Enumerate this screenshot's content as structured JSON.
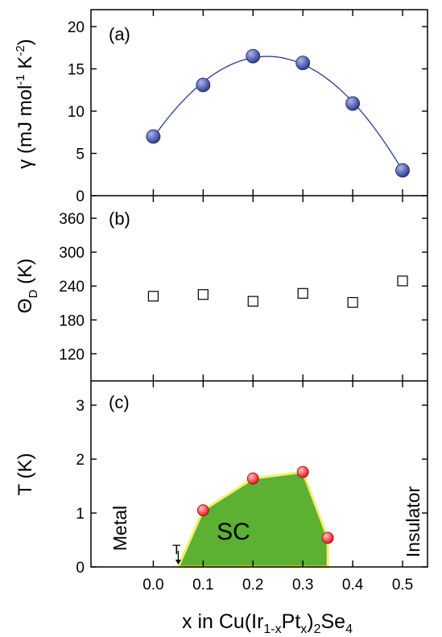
{
  "chart_data": [
    {
      "panel_label": "(a)",
      "type": "scatter",
      "ylabel": {
        "main": "γ (mJ mol",
        "sup1": "-1",
        "mid": " K",
        "sup2": "-2",
        "close": ")"
      },
      "ylim": [
        0,
        22
      ],
      "yticks": [
        0,
        5,
        10,
        15,
        20
      ],
      "x": [
        0.0,
        0.1,
        0.2,
        0.3,
        0.4,
        0.5
      ],
      "y": [
        7.0,
        13.1,
        16.5,
        15.7,
        10.9,
        3.0
      ],
      "marker": "filled-sphere",
      "fit_curve": "quadratic",
      "colors": {
        "marker": "#2b3a8f",
        "marker_highlight": "#aab4ec",
        "curve": "#2b3a8f"
      }
    },
    {
      "panel_label": "(b)",
      "type": "scatter",
      "ylabel": {
        "main": "Θ",
        "sub": "D",
        "tail": " (K)"
      },
      "ylim": [
        72,
        400
      ],
      "yticks": [
        120,
        180,
        240,
        300,
        360
      ],
      "x": [
        0.0,
        0.1,
        0.2,
        0.3,
        0.4,
        0.5
      ],
      "y": [
        222,
        225,
        213,
        227,
        211,
        249
      ],
      "marker": "open-square"
    },
    {
      "panel_label": "(c)",
      "type": "area",
      "ylabel": "T (K)",
      "ylim": [
        0,
        3.45
      ],
      "yticks": [
        0,
        1,
        2,
        3
      ],
      "x": [
        0.1,
        0.2,
        0.3,
        0.35
      ],
      "y": [
        1.05,
        1.64,
        1.76,
        0.54
      ],
      "boundary_x": [
        0.05,
        0.1,
        0.2,
        0.3,
        0.35,
        0.35
      ],
      "boundary_y": [
        0,
        1.05,
        1.64,
        1.76,
        0.54,
        0
      ],
      "marker": "filled-sphere",
      "arrow_at_x": 0.05,
      "arrow_label": "T",
      "region_labels": {
        "sc": "SC",
        "metal": "Metal",
        "insulator": "Insulator"
      },
      "colors": {
        "fill": "#5cb032",
        "edge": "#f2ee6a",
        "marker": "#e8101c",
        "marker_highlight": "#ffc0c0"
      }
    }
  ],
  "x_axis": {
    "xlim": [
      -0.125,
      0.55
    ],
    "ticks": [
      0.0,
      0.1,
      0.2,
      0.3,
      0.4,
      0.5
    ],
    "tick_labels": [
      "0.0",
      "0.1",
      "0.2",
      "0.3",
      "0.4",
      "0.5"
    ],
    "label": {
      "p1": "x in Cu(Ir",
      "s1": "1-x",
      "p2": "Pt",
      "s2": "x",
      "p3": ")",
      "s3": "2",
      "p4": "Se",
      "s4": "4"
    }
  }
}
